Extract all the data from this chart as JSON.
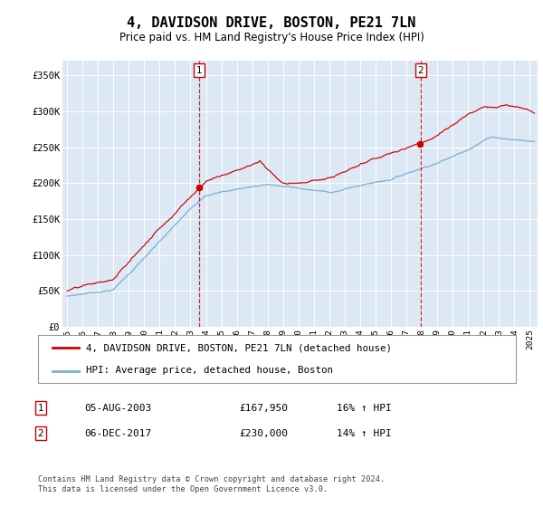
{
  "title": "4, DAVIDSON DRIVE, BOSTON, PE21 7LN",
  "subtitle": "Price paid vs. HM Land Registry's House Price Index (HPI)",
  "background_color": "#dce9f5",
  "plot_bg_color": "#dce9f5",
  "ylabel_ticks": [
    "£0",
    "£50K",
    "£100K",
    "£150K",
    "£200K",
    "£250K",
    "£300K",
    "£350K"
  ],
  "ytick_vals": [
    0,
    50000,
    100000,
    150000,
    200000,
    250000,
    300000,
    350000
  ],
  "ylim": [
    0,
    370000
  ],
  "xlim_start": 1994.7,
  "xlim_end": 2025.5,
  "sale1_date": 2003.58,
  "sale1_price": 167950,
  "sale2_date": 2017.92,
  "sale2_price": 230000,
  "legend_house": "4, DAVIDSON DRIVE, BOSTON, PE21 7LN (detached house)",
  "legend_hpi": "HPI: Average price, detached house, Boston",
  "footer": "Contains HM Land Registry data © Crown copyright and database right 2024.\nThis data is licensed under the Open Government Licence v3.0.",
  "line_house_color": "#cc0000",
  "line_hpi_color": "#7aadd4",
  "vline_color": "#cc0000",
  "box_color": "#cc0000",
  "grid_color": "#ffffff",
  "plot_face_color": "#dce9f5"
}
